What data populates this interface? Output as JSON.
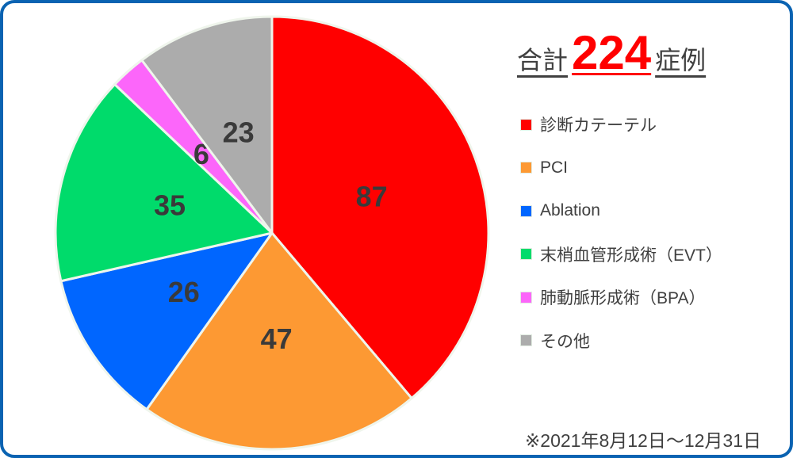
{
  "title": {
    "prefix": "合計",
    "total": "224",
    "suffix": "症例"
  },
  "chart_data": {
    "type": "pie",
    "title": "合計 224症例",
    "categories": [
      "診断カテーテル",
      "PCI",
      "Ablation",
      "末梢血管形成術（EVT）",
      "肺動脈形成術（BPA）",
      "その他"
    ],
    "values": [
      87,
      47,
      26,
      35,
      6,
      23
    ],
    "colors": [
      "#FF0000",
      "#FD9933",
      "#0066FF",
      "#00DB6B",
      "#FC66FA",
      "#ACACAC"
    ],
    "total": 224,
    "start_angle_deg": 0,
    "direction": "clockwise",
    "legend_position": "right",
    "data_labels": "values"
  },
  "footnote": {
    "text": "※2021年8月12日～12月31日"
  },
  "colors": {
    "frame_border": "#0A63B2",
    "title_total": "#FF0000",
    "title_text": "#404040",
    "pie_label_text": "#3A3A3A",
    "legend_text": "#3F3F3F",
    "slice_outline": "#EFF5EC",
    "background": "#FFFFFF"
  }
}
